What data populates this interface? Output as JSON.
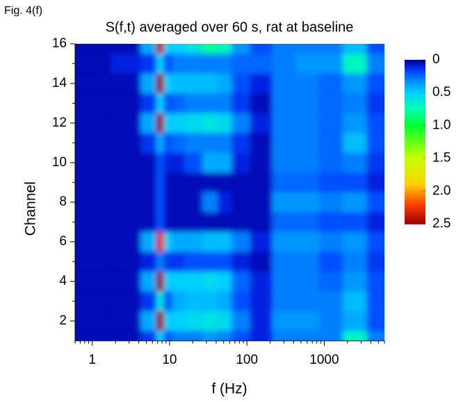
{
  "chart_data": {
    "type": "heatmap",
    "figure_label": "Fig. 4(f)",
    "title": "S(f,t) averaged over 60 s, rat at baseline",
    "xlabel": "f (Hz)",
    "ylabel": "Channel",
    "xscale": "log",
    "xlim": [
      0.6,
      6000
    ],
    "xticks": [
      1,
      10,
      100,
      1000
    ],
    "ylim": [
      1,
      16
    ],
    "yticks": [
      2,
      4,
      6,
      8,
      10,
      12,
      14,
      16
    ],
    "zlim": [
      0,
      2.5
    ],
    "zticks": [
      0,
      0.5,
      {
        "value": 1,
        "label": "1.0"
      },
      1.5,
      {
        "value": 2,
        "label": "2.0"
      },
      2.5
    ],
    "x": [
      1,
      3,
      6,
      7.5,
      9.5,
      12,
      20,
      35,
      50,
      80,
      150,
      300,
      600,
      1200,
      2500,
      5000
    ],
    "y": [
      1,
      2,
      3,
      4,
      5,
      6,
      7,
      8,
      9,
      10,
      11,
      12,
      13,
      14,
      15,
      16
    ],
    "z": [
      [
        0.05,
        0.05,
        0.15,
        0.5,
        0.2,
        0.3,
        0.3,
        0.35,
        0.3,
        0.2,
        0.1,
        0.3,
        0.3,
        0.3,
        0.7,
        0.3
      ],
      [
        0.05,
        0.05,
        0.4,
        2.5,
        0.5,
        0.5,
        0.55,
        0.6,
        0.55,
        0.3,
        0.1,
        0.35,
        0.35,
        0.3,
        0.4,
        0.2
      ],
      [
        0.05,
        0.05,
        0.15,
        0.6,
        0.2,
        0.4,
        0.45,
        0.45,
        0.4,
        0.2,
        0.1,
        0.3,
        0.3,
        0.3,
        0.45,
        0.2
      ],
      [
        0.05,
        0.05,
        0.4,
        2.5,
        0.5,
        0.5,
        0.5,
        0.55,
        0.5,
        0.25,
        0.1,
        0.3,
        0.3,
        0.25,
        0.35,
        0.2
      ],
      [
        0.05,
        0.05,
        0.1,
        0.3,
        0.15,
        0.15,
        0.2,
        0.2,
        0.2,
        0.1,
        0.05,
        0.3,
        0.3,
        0.2,
        0.3,
        0.15
      ],
      [
        0.05,
        0.05,
        0.4,
        2.3,
        0.5,
        0.4,
        0.4,
        0.45,
        0.45,
        0.3,
        0.1,
        0.35,
        0.35,
        0.3,
        0.35,
        0.2
      ],
      [
        0.05,
        0.05,
        0.05,
        0.2,
        0.05,
        0.05,
        0.05,
        0.05,
        0.05,
        0.05,
        0.05,
        0.25,
        0.25,
        0.2,
        0.2,
        0.1
      ],
      [
        0.05,
        0.05,
        0.05,
        0.2,
        0.05,
        0.05,
        0.05,
        0.3,
        0.1,
        0.05,
        0.05,
        0.35,
        0.35,
        0.3,
        0.35,
        0.2
      ],
      [
        0.05,
        0.05,
        0.05,
        0.2,
        0.05,
        0.05,
        0.05,
        0.05,
        0.05,
        0.05,
        0.05,
        0.25,
        0.25,
        0.2,
        0.2,
        0.1
      ],
      [
        0.05,
        0.05,
        0.05,
        0.2,
        0.1,
        0.1,
        0.2,
        0.4,
        0.4,
        0.1,
        0.05,
        0.3,
        0.3,
        0.25,
        0.3,
        0.15
      ],
      [
        0.05,
        0.05,
        0.15,
        0.4,
        0.2,
        0.25,
        0.3,
        0.3,
        0.3,
        0.15,
        0.05,
        0.3,
        0.3,
        0.25,
        0.45,
        0.2
      ],
      [
        0.05,
        0.05,
        0.4,
        2.5,
        0.5,
        0.5,
        0.55,
        0.6,
        0.55,
        0.3,
        0.1,
        0.3,
        0.3,
        0.25,
        0.35,
        0.2
      ],
      [
        0.05,
        0.05,
        0.15,
        0.5,
        0.2,
        0.25,
        0.3,
        0.3,
        0.3,
        0.15,
        0.05,
        0.3,
        0.3,
        0.25,
        0.3,
        0.15
      ],
      [
        0.05,
        0.05,
        0.4,
        2.5,
        0.5,
        0.45,
        0.45,
        0.45,
        0.4,
        0.2,
        0.1,
        0.3,
        0.3,
        0.25,
        0.35,
        0.2
      ],
      [
        0.05,
        0.1,
        0.15,
        0.5,
        0.2,
        0.3,
        0.3,
        0.3,
        0.3,
        0.25,
        0.25,
        0.3,
        0.35,
        0.35,
        0.7,
        0.3
      ],
      [
        0.05,
        0.05,
        0.4,
        2.4,
        0.5,
        0.5,
        0.6,
        0.8,
        0.7,
        0.35,
        0.2,
        0.3,
        0.3,
        0.3,
        0.45,
        0.2
      ]
    ]
  }
}
